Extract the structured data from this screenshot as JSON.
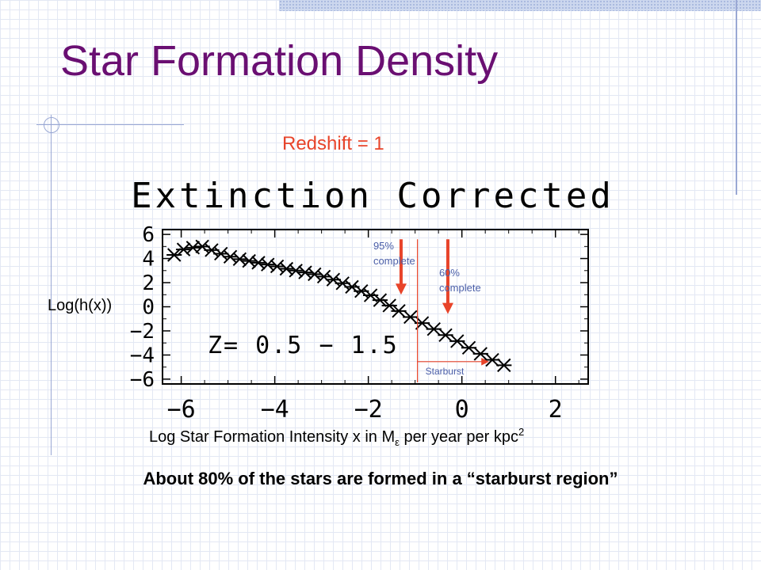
{
  "slide": {
    "title": "Star Formation Density",
    "subtitle": "Redshift = 1",
    "caption": "About 80% of the stars are formed in a “starburst region”"
  },
  "chart_data": {
    "type": "scatter",
    "title": "Extinction Corrected",
    "xlabel_prefix": "Log Star Formation Intensity x in M",
    "xlabel_subscript": "ε",
    "xlabel_suffix": " per year per kpc",
    "xlabel_superscript": "2",
    "ylabel": "Log(h(x))",
    "xlim": [
      -6.4,
      2.7
    ],
    "ylim": [
      -6.4,
      6.4
    ],
    "xticks": [
      -6,
      -4,
      -2,
      0,
      2
    ],
    "xtick_labels": [
      "−6",
      "−4",
      "−2",
      "0",
      "2"
    ],
    "yticks": [
      6,
      4,
      2,
      0,
      -2,
      -4,
      -6
    ],
    "ytick_labels": [
      "6",
      "4",
      "2",
      "0",
      "−2",
      "−4",
      "−6"
    ],
    "annotation_box": "Z= 0.5 − 1.5",
    "marker": "asterisk",
    "grid": false,
    "x": [
      -6.15,
      -5.95,
      -5.75,
      -5.55,
      -5.35,
      -5.15,
      -4.95,
      -4.75,
      -4.55,
      -4.35,
      -4.15,
      -3.95,
      -3.75,
      -3.55,
      -3.35,
      -3.15,
      -2.95,
      -2.75,
      -2.55,
      -2.35,
      -2.15,
      -1.95,
      -1.75,
      -1.55,
      -1.35,
      -1.1,
      -0.85,
      -0.6,
      -0.35,
      -0.1,
      0.15,
      0.4,
      0.65,
      0.9
    ],
    "y": [
      4.3,
      4.75,
      4.9,
      5.0,
      4.7,
      4.4,
      4.15,
      3.95,
      3.8,
      3.65,
      3.5,
      3.35,
      3.15,
      3.0,
      2.85,
      2.7,
      2.5,
      2.25,
      1.95,
      1.65,
      1.3,
      0.95,
      0.55,
      0.1,
      -0.35,
      -0.85,
      -1.35,
      -1.85,
      -2.35,
      -2.85,
      -3.4,
      -3.9,
      -4.4,
      -4.85
    ],
    "annotations": {
      "arrow_95": {
        "label_line1": "95%",
        "label_line2": "complete",
        "x": -1.3,
        "y_top": 5.6,
        "y_bottom": 1.0
      },
      "arrow_60": {
        "label_line1": "60%",
        "label_line2": "complete",
        "x": -0.3,
        "y_top": 5.6,
        "y_bottom": -0.6
      },
      "starburst": {
        "label": "Starburst",
        "x_start": -0.95,
        "x_end": 0.05,
        "y_top": 5.6,
        "y_bottom": -6.4
      }
    },
    "colors": {
      "axis": "#000000",
      "marker": "#000000",
      "arrow": "#e8442a",
      "bracket": "#e8442a",
      "annotation_text": "#4a5ea8"
    }
  }
}
